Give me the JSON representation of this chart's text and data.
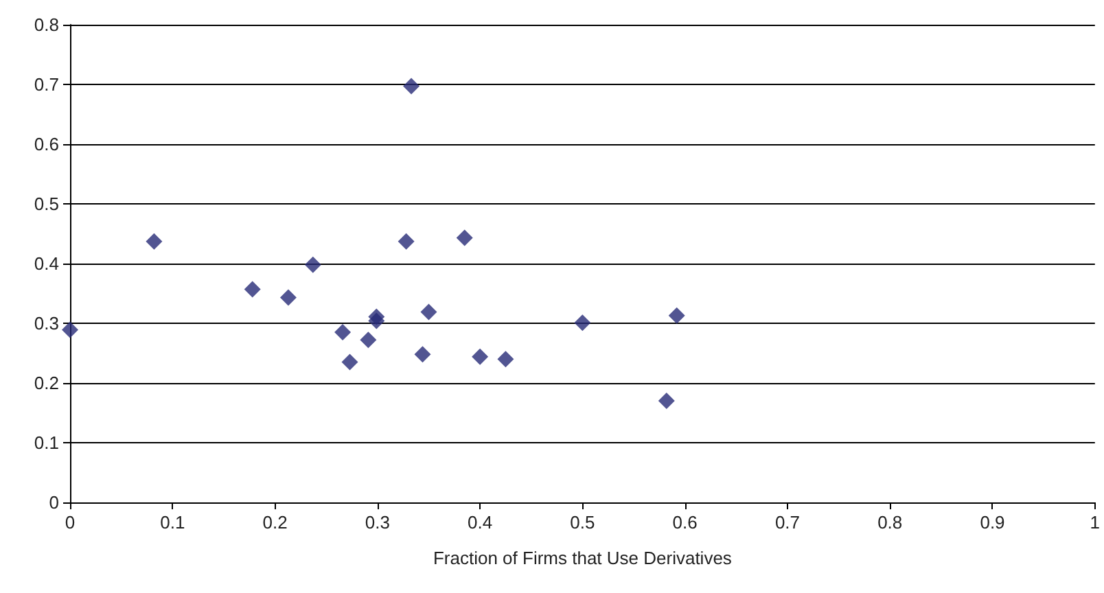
{
  "chart_data": {
    "type": "scatter",
    "xlabel": "Fraction of Firms that Use Derivatives",
    "x": [
      0,
      0.082,
      0.178,
      0.213,
      0.237,
      0.266,
      0.273,
      0.291,
      0.299,
      0.299,
      0.333,
      0.328,
      0.385,
      0.35,
      0.344,
      0.4,
      0.425,
      0.5,
      0.592,
      0.582
    ],
    "values": [
      0.289,
      0.437,
      0.357,
      0.343,
      0.398,
      0.285,
      0.235,
      0.272,
      0.311,
      0.304,
      0.697,
      0.437,
      0.443,
      0.319,
      0.248,
      0.244,
      0.24,
      0.301,
      0.313,
      0.17
    ],
    "color": "#272b77",
    "marker": "diamond",
    "xlim": [
      0,
      1
    ],
    "xticks": [
      0,
      0.1,
      0.2,
      0.3,
      0.4,
      0.5,
      0.6,
      0.7,
      0.8,
      0.9,
      1
    ],
    "ylim": [
      0,
      0.8
    ],
    "yticks": [
      0,
      0.1,
      0.2,
      0.3,
      0.4,
      0.5,
      0.6,
      0.7,
      0.8
    ],
    "grid": "y"
  }
}
